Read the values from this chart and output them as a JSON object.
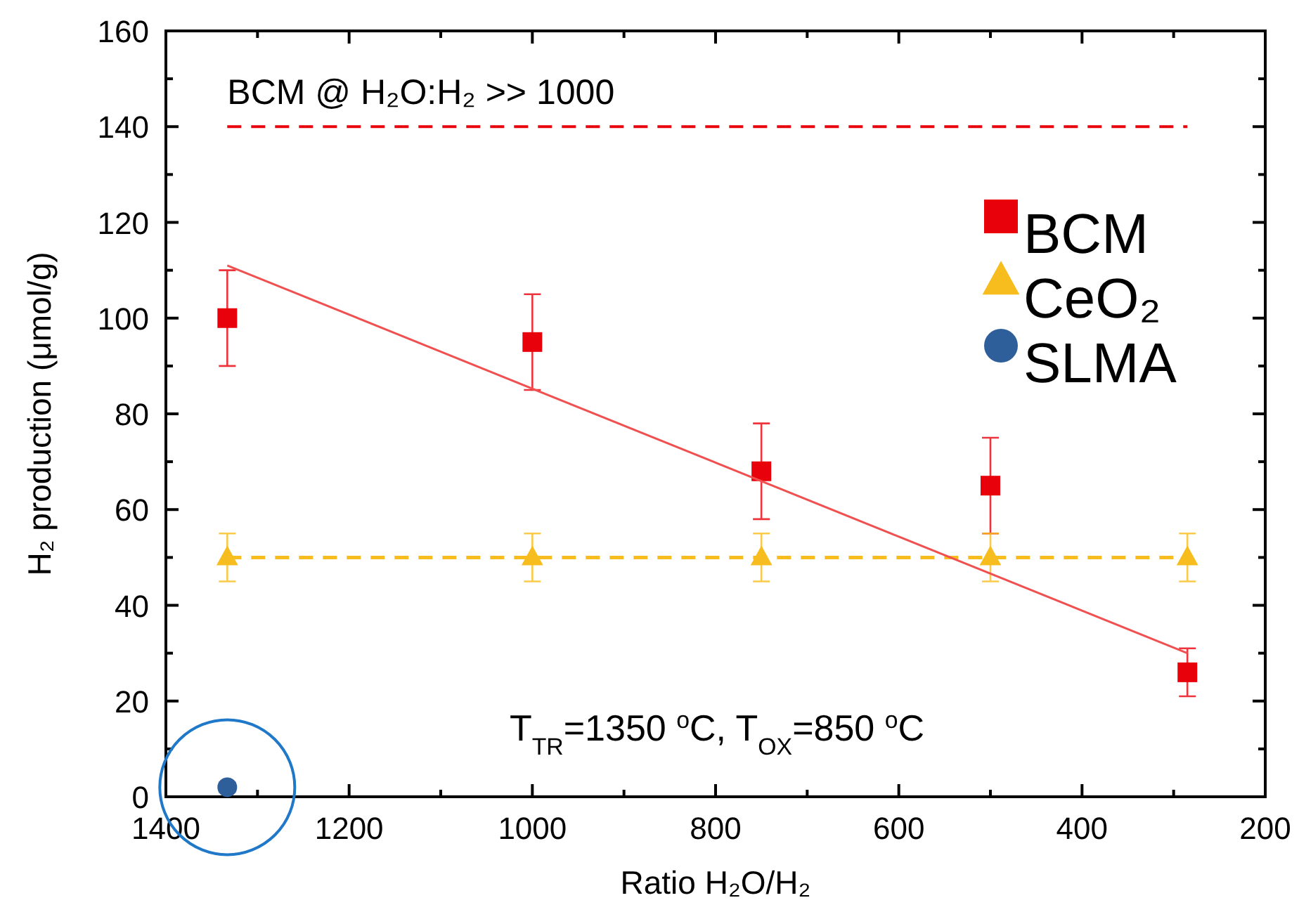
{
  "chart_data": {
    "type": "scatter",
    "xlabel": "Ratio H₂O/H₂",
    "ylabel": "H₂ production (μmol/g)",
    "xlim": [
      1400,
      200
    ],
    "xticks": [
      1400,
      {
        "value": 1300,
        "label": null
      },
      1200,
      {
        "value": 1100,
        "label": null
      },
      1000,
      {
        "value": 900,
        "label": null
      },
      800,
      {
        "value": 700,
        "label": null
      },
      600,
      {
        "value": 500,
        "label": null
      },
      400,
      {
        "value": 300,
        "label": null
      },
      200
    ],
    "ylim": [
      0,
      160
    ],
    "yticks": [
      0,
      {
        "value": 10,
        "label": null
      },
      20,
      {
        "value": 30,
        "label": null
      },
      40,
      {
        "value": 50,
        "label": null
      },
      60,
      {
        "value": 70,
        "label": null
      },
      80,
      {
        "value": 90,
        "label": null
      },
      100,
      {
        "value": 110,
        "label": null
      },
      120,
      {
        "value": 130,
        "label": null
      },
      140,
      {
        "value": 150,
        "label": null
      },
      160
    ],
    "grid": false,
    "legend": "top right",
    "series": [
      {
        "name": "BCM",
        "type": "scatter",
        "color": "#e8000b",
        "marker": "square",
        "x": [
          1333,
          1000,
          750,
          500,
          285
        ],
        "values": [
          100,
          95,
          68,
          65,
          26
        ],
        "errors": [
          10,
          10,
          10,
          10,
          5
        ]
      },
      {
        "name": "CeO₂",
        "type": "line",
        "color": "#f7bd1e",
        "marker": "triangle",
        "line_style": "dashed",
        "x": [
          1333,
          1000,
          750,
          500,
          285
        ],
        "values": [
          50,
          50,
          50,
          50,
          50
        ],
        "errors": [
          5,
          5,
          5,
          5,
          5
        ]
      },
      {
        "name": "SLMA",
        "type": "scatter",
        "color": "#2f5f9a",
        "marker": "circle",
        "x": [
          1333
        ],
        "values": [
          2
        ],
        "errors": [
          1
        ]
      },
      {
        "type": "line",
        "color": "#f05050",
        "marker": "none",
        "line_style": "solid",
        "x": [
          1333,
          285
        ],
        "values": [
          111,
          30
        ]
      }
    ],
    "ref_lines": [
      {
        "axis": "y",
        "value": 140,
        "label": "BCM @ H₂O:H₂ >> 1000",
        "color": "#e8000b",
        "line_style": "dashed"
      }
    ],
    "annotations": [
      "T$_{TR}$=1350 $^{o}$C, T$_{OX}$=850 $^{o}$C"
    ]
  }
}
